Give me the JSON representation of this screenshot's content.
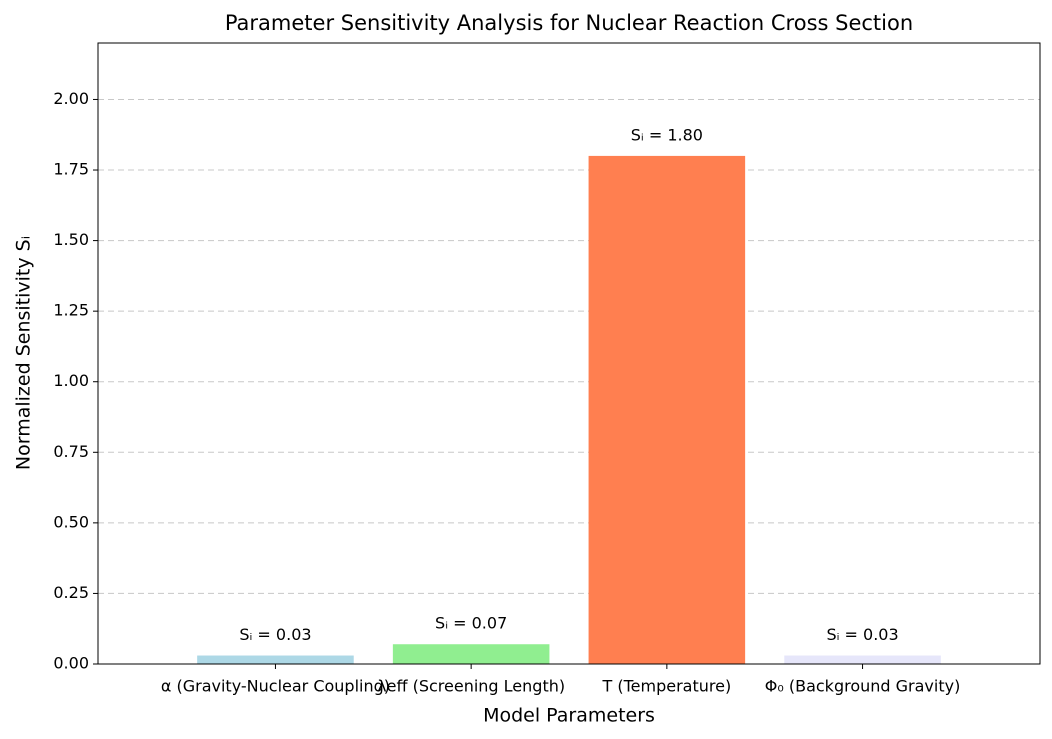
{
  "chart_data": {
    "type": "bar",
    "title": "Parameter Sensitivity Analysis for Nuclear Reaction Cross Section",
    "xlabel": "Model Parameters",
    "ylabel": "Normalized Sensitivity Sᵢ",
    "categories": [
      "α (Gravity-Nuclear Coupling)",
      "λeff (Screening Length)",
      "T (Temperature)",
      "Φ₀ (Background Gravity)"
    ],
    "values": [
      0.03,
      0.07,
      1.8,
      0.03
    ],
    "value_labels": [
      "Sᵢ = 0.03",
      "Sᵢ = 0.07",
      "Sᵢ = 1.80",
      "Sᵢ = 0.03"
    ],
    "colors": [
      "#add8e6",
      "#90ee90",
      "#ff7f50",
      "#e6e6fa"
    ],
    "ylim": [
      0,
      2.2
    ],
    "yticks": [
      {
        "value": 0,
        "label": "0.00"
      },
      {
        "value": 0.25,
        "label": "0.25"
      },
      {
        "value": 0.5,
        "label": "0.50"
      },
      {
        "value": 0.75,
        "label": "0.75"
      },
      {
        "value": 1,
        "label": "1.00"
      },
      {
        "value": 1.25,
        "label": "1.25"
      },
      {
        "value": 1.5,
        "label": "1.50"
      },
      {
        "value": 1.75,
        "label": "1.75"
      },
      {
        "value": 2,
        "label": "2.00"
      }
    ],
    "grid": true
  }
}
